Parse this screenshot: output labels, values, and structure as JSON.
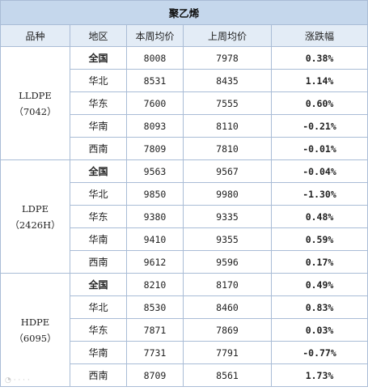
{
  "title": "聚乙烯",
  "headers": [
    "品种",
    "地区",
    "本周均价",
    "上周均价",
    "涨跌幅"
  ],
  "colors": {
    "up": "#e0121b",
    "down": "#11a04a",
    "title_bg": "#c5d7ec",
    "header_bg": "#e3ecf6",
    "border": "#a9bcd6"
  },
  "groups": [
    {
      "name": "LLDPE",
      "code": "（7042）",
      "rows": [
        {
          "region": "全国",
          "this_week": "8008",
          "last_week": "7978",
          "change": "0.38%",
          "dir": "up"
        },
        {
          "region": "华北",
          "this_week": "8531",
          "last_week": "8435",
          "change": "1.14%",
          "dir": "up"
        },
        {
          "region": "华东",
          "this_week": "7600",
          "last_week": "7555",
          "change": "0.60%",
          "dir": "up"
        },
        {
          "region": "华南",
          "this_week": "8093",
          "last_week": "8110",
          "change": "-0.21%",
          "dir": "down"
        },
        {
          "region": "西南",
          "this_week": "7809",
          "last_week": "7810",
          "change": "-0.01%",
          "dir": "down"
        }
      ]
    },
    {
      "name": "LDPE",
      "code": "（2426H）",
      "rows": [
        {
          "region": "全国",
          "this_week": "9563",
          "last_week": "9567",
          "change": "-0.04%",
          "dir": "down"
        },
        {
          "region": "华北",
          "this_week": "9850",
          "last_week": "9980",
          "change": "-1.30%",
          "dir": "down"
        },
        {
          "region": "华东",
          "this_week": "9380",
          "last_week": "9335",
          "change": "0.48%",
          "dir": "up"
        },
        {
          "region": "华南",
          "this_week": "9410",
          "last_week": "9355",
          "change": "0.59%",
          "dir": "up"
        },
        {
          "region": "西南",
          "this_week": "9612",
          "last_week": "9596",
          "change": "0.17%",
          "dir": "up"
        }
      ]
    },
    {
      "name": "HDPE",
      "code": "（6095）",
      "rows": [
        {
          "region": "全国",
          "this_week": "8210",
          "last_week": "8170",
          "change": "0.49%",
          "dir": "up"
        },
        {
          "region": "华北",
          "this_week": "8530",
          "last_week": "8460",
          "change": "0.83%",
          "dir": "up"
        },
        {
          "region": "华东",
          "this_week": "7871",
          "last_week": "7869",
          "change": "0.03%",
          "dir": "up"
        },
        {
          "region": "华南",
          "this_week": "7731",
          "last_week": "7791",
          "change": "-0.77%",
          "dir": "down"
        },
        {
          "region": "西南",
          "this_week": "8709",
          "last_week": "8561",
          "change": "1.73%",
          "dir": "up"
        }
      ]
    }
  ]
}
